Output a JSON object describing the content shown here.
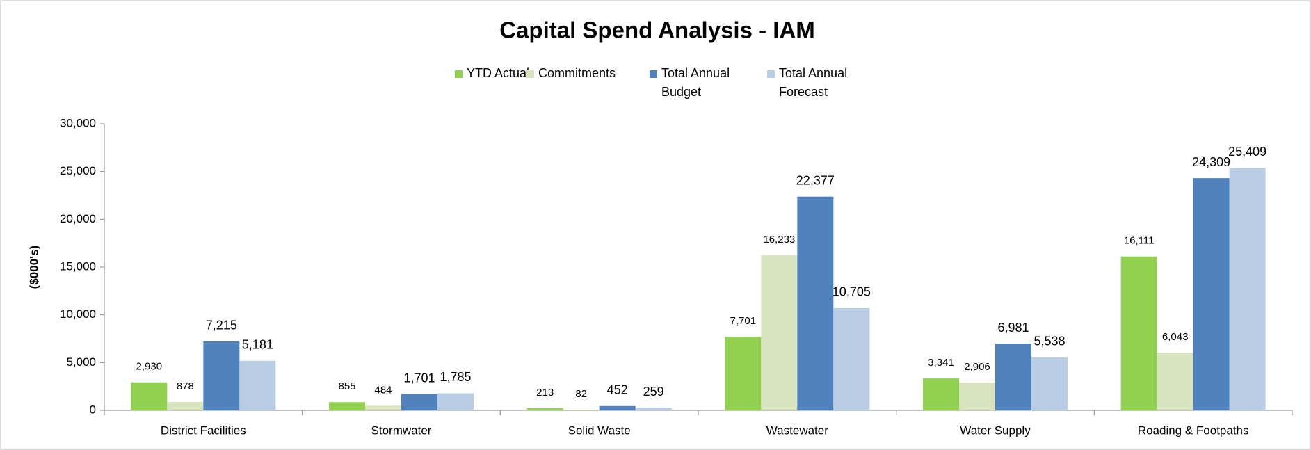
{
  "chart_data": {
    "type": "bar",
    "title": "Capital Spend Analysis - IAM",
    "y_label": "($000's)",
    "categories": [
      "District Facilities",
      "Stormwater",
      "Solid Waste",
      "Wastewater",
      "Water Supply",
      "Roading & Footpaths"
    ],
    "series": [
      {
        "name": "YTD Actual",
        "color": "#92d050",
        "values": [
          2930,
          855,
          213,
          7701,
          3341,
          16111
        ],
        "value_labels": [
          "2,930",
          "855",
          "213",
          "7,701",
          "3,341",
          "16,111"
        ]
      },
      {
        "name": "Commitments",
        "color": "#d7e4bd",
        "values": [
          878,
          484,
          82,
          16233,
          2906,
          6043
        ],
        "value_labels": [
          "878",
          "484",
          "82",
          "16,233",
          "2,906",
          "6,043"
        ]
      },
      {
        "name": "Total Annual Budget",
        "color": "#4f81bd",
        "values": [
          7215,
          1701,
          452,
          22377,
          6981,
          24309
        ],
        "value_labels": [
          "7,215",
          "1,701",
          "452",
          "22,377",
          "6,981",
          "24,309"
        ]
      },
      {
        "name": "Total Annual Forecast",
        "color": "#b9cde5",
        "values": [
          5181,
          1785,
          259,
          10705,
          5538,
          25409
        ],
        "value_labels": [
          "5,181",
          "1,785",
          "259",
          "10,705",
          "5,538",
          "25,409"
        ]
      }
    ],
    "ylim": [
      0,
      30000
    ],
    "yticks": [
      0,
      {
        "value": 5000,
        "label": "5,000"
      },
      {
        "value": 10000,
        "label": "10,000"
      },
      {
        "value": 15000,
        "label": "15,000"
      },
      {
        "value": 20000,
        "label": "20,000"
      },
      {
        "value": 25000,
        "label": "25,000"
      },
      {
        "value": 30000,
        "label": "30,000"
      }
    ],
    "legend": "top"
  }
}
